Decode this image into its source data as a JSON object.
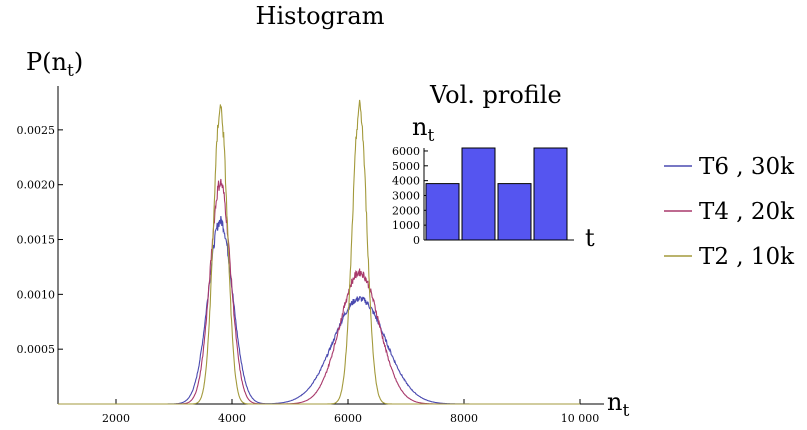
{
  "chart_data": [
    {
      "type": "line",
      "title": "Histogram",
      "ylabel": "P(n",
      "ylabel_sub": "t",
      "ylabel_close": ")",
      "xlabel": "n",
      "xlabel_sub": "t",
      "xlim": [
        1000,
        10000
      ],
      "ylim": [
        0,
        0.0029
      ],
      "xticks": [
        2000,
        4000,
        6000,
        8000,
        10000
      ],
      "xtick_labels": [
        "2000",
        "4000",
        "6000",
        "8000",
        "10 000"
      ],
      "yticks": [
        0.0005,
        0.001,
        0.0015,
        0.002,
        0.0025
      ],
      "ytick_labels": [
        "0.0005",
        "0.0010",
        "0.0015",
        "0.0020",
        "0.0025"
      ],
      "legend_position": "right",
      "series": [
        {
          "name": "T6 , 30k",
          "color": "#4a4ab0",
          "peaks": [
            {
              "mu": 3800,
              "amp": 0.00167,
              "sigma": 210
            },
            {
              "mu": 6200,
              "amp": 0.00096,
              "sigma": 450
            }
          ]
        },
        {
          "name": "T4 , 20k",
          "color": "#a8396b",
          "peaks": [
            {
              "mu": 3800,
              "amp": 0.00202,
              "sigma": 175
            },
            {
              "mu": 6200,
              "amp": 0.0012,
              "sigma": 340
            }
          ]
        },
        {
          "name": "T2 , 10k",
          "color": "#a39a3c",
          "peaks": [
            {
              "mu": 3800,
              "amp": 0.0027,
              "sigma": 120
            },
            {
              "mu": 6200,
              "amp": 0.0027,
              "sigma": 125
            }
          ]
        }
      ]
    },
    {
      "type": "bar",
      "title": "Vol. profile",
      "ylabel": "n",
      "ylabel_sub": "t",
      "xlabel": "t",
      "values": [
        3800,
        6200,
        3800,
        6200
      ],
      "ylim": [
        0,
        6200
      ],
      "yticks": [
        0,
        1000,
        2000,
        3000,
        4000,
        5000,
        6000
      ],
      "ytick_labels": [
        "0",
        "1000",
        "2000",
        "3000",
        "4000",
        "5000",
        "6000"
      ],
      "bar_color": "#5555f0"
    }
  ]
}
